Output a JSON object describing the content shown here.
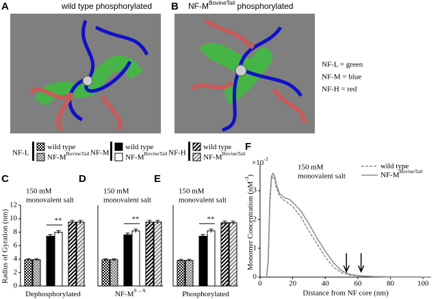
{
  "images": [
    {
      "label": "A",
      "title": [
        {
          "text": "wild type phosphorylated"
        }
      ]
    },
    {
      "label": "B",
      "title": [
        {
          "text": "NF-M"
        },
        {
          "text": "BovineTail",
          "sup": true
        },
        {
          "text": " phosphorylated"
        }
      ]
    }
  ],
  "color_key": [
    "NF-L  = green",
    "NF-M = blue",
    "NF-H  = red"
  ],
  "legend": {
    "groups": [
      {
        "name": "NF-L",
        "entries": [
          [
            {
              "text": "wild type"
            }
          ],
          [
            {
              "text": "NF-M"
            },
            {
              "text": "BovineTail",
              "sup": true
            }
          ]
        ]
      },
      {
        "name": "NF-M",
        "entries": [
          [
            {
              "text": "wild type"
            }
          ],
          [
            {
              "text": "NF-M"
            },
            {
              "text": "BovineTail",
              "sup": true
            }
          ]
        ]
      },
      {
        "name": "NF-H",
        "entries": [
          [
            {
              "text": "wild type"
            }
          ],
          [
            {
              "text": "NF-M"
            },
            {
              "text": "BovineTail",
              "sup": true
            }
          ]
        ]
      }
    ]
  },
  "chart_data": [
    {
      "type": "bar",
      "label": "C",
      "annotation": [
        "150 mM",
        "monovalent salt"
      ],
      "significance": "**",
      "xlabel": [
        {
          "text": "Dephosphorylated"
        }
      ],
      "ylabel": "Radius of Gyration (nm)",
      "values": [
        3.9,
        3.9,
        7.4,
        8.0,
        9.5,
        9.5
      ],
      "errors": [
        0.15,
        0.15,
        0.25,
        0.25,
        0.25,
        0.25
      ],
      "ylim": [
        0,
        12
      ],
      "yticks": [
        0,
        2,
        4,
        6,
        8,
        10,
        12
      ]
    },
    {
      "type": "bar",
      "label": "D",
      "annotation": [
        "150 mM",
        "monovalent salt"
      ],
      "significance": "**",
      "xlabel": [
        {
          "text": "NF-M"
        },
        {
          "text": "S→A",
          "sup": true
        }
      ],
      "values": [
        3.9,
        3.9,
        7.6,
        8.2,
        9.5,
        9.5
      ],
      "errors": [
        0.15,
        0.15,
        0.25,
        0.25,
        0.25,
        0.25
      ],
      "ylim": [
        0,
        12
      ]
    },
    {
      "type": "bar",
      "label": "E",
      "annotation": [
        "150 mM",
        "monovalent salt"
      ],
      "significance": "**",
      "xlabel": [
        {
          "text": "Phosphorylated"
        }
      ],
      "values": [
        3.8,
        3.8,
        7.4,
        8.2,
        9.4,
        9.4
      ],
      "errors": [
        0.15,
        0.15,
        0.25,
        0.25,
        0.25,
        0.25
      ],
      "ylim": [
        0,
        12
      ]
    },
    {
      "type": "line",
      "label": "F",
      "annotation": [
        "150 mM",
        "monovalent salt"
      ],
      "xlabel": "Distance from NF core (nm)",
      "ylabel": [
        {
          "text": "Monomer Concentration (nM"
        },
        {
          "text": "-3",
          "sup": true
        },
        {
          "text": ")"
        }
      ],
      "y_multiplier": [
        {
          "text": "×10"
        },
        {
          "text": "-3",
          "sup": true
        }
      ],
      "x": [
        4,
        5,
        6,
        7,
        8,
        9,
        10,
        12,
        15,
        18,
        20,
        25,
        30,
        35,
        40,
        45,
        50,
        55,
        60,
        70,
        80,
        90,
        100,
        105
      ],
      "series": [
        {
          "name": [
            {
              "text": "wild type"
            }
          ],
          "color": "#888888",
          "dash": true,
          "values": [
            0,
            0.5,
            2.5,
            3.4,
            3.5,
            3.4,
            3.1,
            2.8,
            2.65,
            2.55,
            2.45,
            2.1,
            1.6,
            1.15,
            0.7,
            0.35,
            0.15,
            0.07,
            0.04,
            0.02,
            0.01,
            0.01,
            0,
            0
          ]
        },
        {
          "name": [
            {
              "text": "NF-M"
            },
            {
              "text": "BovineTail",
              "sup": true
            }
          ],
          "color": "#888888",
          "dash": false,
          "values": [
            0,
            0.6,
            2.7,
            3.5,
            3.6,
            3.5,
            3.2,
            2.9,
            2.75,
            2.7,
            2.6,
            2.3,
            1.85,
            1.35,
            0.9,
            0.5,
            0.22,
            0.1,
            0.05,
            0.02,
            0.01,
            0.01,
            0,
            0
          ]
        }
      ],
      "arrows_x": [
        53,
        62
      ],
      "xlim": [
        0,
        105
      ],
      "xticks": [
        0,
        20,
        40,
        60,
        80,
        100
      ],
      "ylim": [
        0,
        3.8
      ],
      "yticks": [
        0,
        1,
        2,
        3
      ]
    }
  ]
}
